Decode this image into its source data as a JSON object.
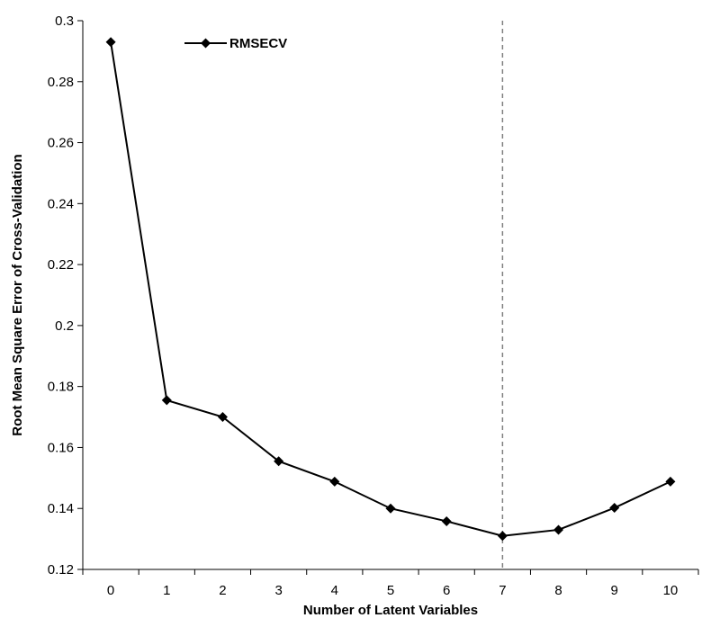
{
  "chart_data": {
    "type": "line",
    "xlabel": "Number of Latent Variables",
    "ylabel": "Root Mean Square Error of Cross-Validation",
    "x": [
      0,
      1,
      2,
      3,
      4,
      5,
      6,
      7,
      8,
      9,
      10
    ],
    "x_tick_labels": [
      "0",
      "1",
      "2",
      "3",
      "4",
      "5",
      "6",
      "7",
      "8",
      "9",
      "10"
    ],
    "y_tick_labels": [
      "0.3",
      "0.28",
      "0.26",
      "0.24",
      "0.22",
      "0.2",
      "0.18",
      "0.16",
      "0.14",
      "0.12"
    ],
    "y_ticks": [
      0.3,
      0.28,
      0.26,
      0.24,
      0.22,
      0.2,
      0.18,
      0.16,
      0.14,
      0.12
    ],
    "ylim": [
      0.12,
      0.3
    ],
    "xlim": [
      -0.5,
      10.5
    ],
    "grid": false,
    "legend": {
      "position": "top-left",
      "entries": [
        "RMSECV"
      ]
    },
    "series": [
      {
        "name": "RMSECV",
        "marker": "diamond",
        "color": "#000000",
        "values": [
          0.293,
          0.1755,
          0.17,
          0.1555,
          0.1488,
          0.14,
          0.1358,
          0.131,
          0.133,
          0.1402,
          0.1488
        ]
      }
    ],
    "reference_line": {
      "x": 7,
      "style": "dashed",
      "color": "#808080"
    }
  }
}
